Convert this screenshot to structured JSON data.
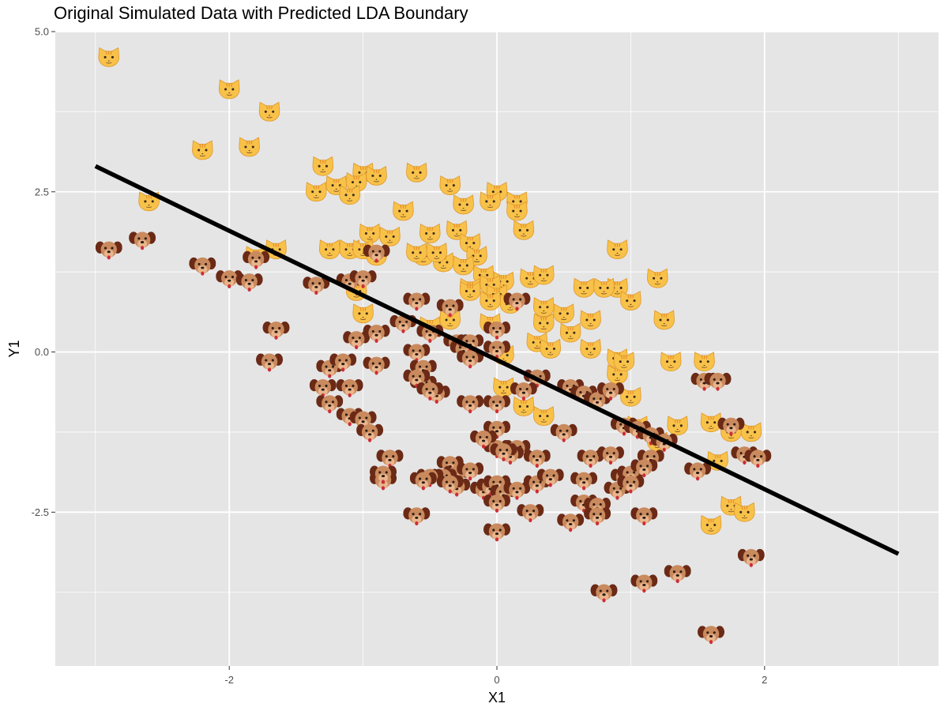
{
  "chart_data": {
    "type": "scatter",
    "title": "Original Simulated Data with Predicted LDA Boundary",
    "xlabel": "X1",
    "ylabel": "Y1",
    "xlim": [
      -3.3,
      3.3
    ],
    "ylim": [
      -4.9,
      5.0
    ],
    "x_ticks": [
      -2,
      0,
      2
    ],
    "x_tick_labels": [
      "-2",
      "0",
      "2"
    ],
    "y_ticks": [
      5.0,
      2.5,
      0.0,
      -2.5
    ],
    "y_tick_labels": [
      "5.0",
      "2.5",
      "0.0",
      "-2.5"
    ],
    "grid": true,
    "colors": {
      "panel_background": "#e5e5e5",
      "grid": "#ffffff",
      "boundary_line": "#000000",
      "cat_fill": "#f8c24a",
      "cat_stripe": "#e58f2a",
      "dog_ear": "#6b2a16",
      "dog_face": "#c98a5e",
      "dog_muzzle": "#e9b58d",
      "dog_tongue": "#cc2e36"
    },
    "boundary_line": {
      "x": [
        -3.0,
        3.0
      ],
      "y": [
        2.9,
        -3.15
      ]
    },
    "series": [
      {
        "marker": "cat-icon",
        "points": [
          [
            -2.9,
            4.6
          ],
          [
            -2.0,
            4.1
          ],
          [
            -1.7,
            3.75
          ],
          [
            -1.85,
            3.2
          ],
          [
            -2.2,
            3.15
          ],
          [
            -2.6,
            2.35
          ],
          [
            -1.65,
            1.6
          ],
          [
            -1.3,
            2.9
          ],
          [
            -1.2,
            2.6
          ],
          [
            -1.35,
            2.5
          ],
          [
            -1.0,
            2.8
          ],
          [
            -0.9,
            2.75
          ],
          [
            -1.05,
            2.65
          ],
          [
            -1.1,
            2.45
          ],
          [
            -0.6,
            2.8
          ],
          [
            -0.35,
            2.6
          ],
          [
            -0.7,
            2.2
          ],
          [
            -0.8,
            1.8
          ],
          [
            -0.95,
            1.85
          ],
          [
            -0.5,
            1.85
          ],
          [
            -0.25,
            2.3
          ],
          [
            -0.3,
            1.9
          ],
          [
            -0.2,
            1.7
          ],
          [
            -0.15,
            1.5
          ],
          [
            -0.4,
            1.4
          ],
          [
            -0.55,
            1.5
          ],
          [
            -0.45,
            1.55
          ],
          [
            -0.25,
            1.35
          ],
          [
            -0.1,
            1.2
          ],
          [
            0.05,
            1.1
          ],
          [
            -0.05,
            1.05
          ],
          [
            -0.2,
            1.0
          ],
          [
            0.0,
            2.5
          ],
          [
            0.15,
            2.35
          ],
          [
            -0.05,
            2.35
          ],
          [
            0.15,
            2.2
          ],
          [
            0.2,
            1.9
          ],
          [
            -1.25,
            1.6
          ],
          [
            -1.1,
            1.6
          ],
          [
            -1.0,
            1.6
          ],
          [
            -0.9,
            1.5
          ],
          [
            -0.6,
            1.55
          ],
          [
            0.0,
            0.9
          ],
          [
            0.1,
            0.75
          ],
          [
            -0.05,
            0.8
          ],
          [
            0.35,
            0.7
          ],
          [
            0.5,
            0.6
          ],
          [
            0.35,
            0.45
          ],
          [
            0.65,
            1.0
          ],
          [
            0.9,
            1.0
          ],
          [
            0.8,
            1.0
          ],
          [
            1.2,
            1.15
          ],
          [
            1.0,
            0.8
          ],
          [
            1.25,
            0.5
          ],
          [
            0.7,
            0.5
          ],
          [
            0.55,
            0.3
          ],
          [
            0.7,
            0.05
          ],
          [
            0.9,
            -0.1
          ],
          [
            0.9,
            -0.35
          ],
          [
            0.95,
            -0.15
          ],
          [
            1.3,
            -0.15
          ],
          [
            1.55,
            -0.15
          ],
          [
            0.05,
            -0.05
          ],
          [
            0.3,
            0.15
          ],
          [
            0.4,
            0.05
          ],
          [
            -1.0,
            0.6
          ],
          [
            -1.05,
            0.95
          ],
          [
            -0.5,
            0.4
          ],
          [
            -0.35,
            0.5
          ],
          [
            1.0,
            -0.7
          ],
          [
            1.35,
            -1.15
          ],
          [
            1.6,
            -1.1
          ],
          [
            1.75,
            -1.25
          ],
          [
            1.9,
            -1.25
          ],
          [
            1.05,
            -1.15
          ],
          [
            1.2,
            -1.4
          ],
          [
            1.65,
            -1.7
          ],
          [
            1.75,
            -2.4
          ],
          [
            1.85,
            -2.5
          ],
          [
            1.6,
            -2.7
          ],
          [
            0.9,
            1.6
          ],
          [
            0.25,
            1.15
          ],
          [
            0.35,
            1.2
          ],
          [
            -1.8,
            1.5
          ],
          [
            -0.2,
            0.95
          ],
          [
            0.05,
            -0.55
          ],
          [
            0.2,
            -0.85
          ],
          [
            0.35,
            -1.0
          ],
          [
            -0.05,
            0.45
          ]
        ]
      },
      {
        "marker": "dog-icon",
        "points": [
          [
            -2.9,
            1.6
          ],
          [
            -2.65,
            1.75
          ],
          [
            -2.2,
            1.35
          ],
          [
            -2.0,
            1.15
          ],
          [
            -1.85,
            1.1
          ],
          [
            -1.8,
            1.45
          ],
          [
            -1.65,
            0.35
          ],
          [
            -1.7,
            -0.15
          ],
          [
            -1.35,
            1.05
          ],
          [
            -1.1,
            1.1
          ],
          [
            -1.0,
            1.15
          ],
          [
            -0.9,
            1.55
          ],
          [
            -1.25,
            -0.25
          ],
          [
            -1.15,
            -0.15
          ],
          [
            -1.3,
            -0.55
          ],
          [
            -1.25,
            -0.8
          ],
          [
            -1.1,
            -0.55
          ],
          [
            -1.05,
            0.2
          ],
          [
            -0.9,
            0.3
          ],
          [
            -0.9,
            -0.2
          ],
          [
            -1.1,
            -1.0
          ],
          [
            -1.0,
            -1.05
          ],
          [
            -0.95,
            -1.25
          ],
          [
            -0.8,
            -1.65
          ],
          [
            -0.85,
            -2.0
          ],
          [
            -0.6,
            0.8
          ],
          [
            -0.6,
            0.0
          ],
          [
            -0.55,
            -0.25
          ],
          [
            -0.55,
            -0.5
          ],
          [
            -0.6,
            -0.4
          ],
          [
            -0.45,
            -0.65
          ],
          [
            -0.7,
            0.45
          ],
          [
            -0.5,
            0.3
          ],
          [
            -0.35,
            0.7
          ],
          [
            -0.3,
            0.15
          ],
          [
            -0.25,
            0.05
          ],
          [
            -0.2,
            0.15
          ],
          [
            -0.2,
            -0.1
          ],
          [
            0.0,
            0.35
          ],
          [
            0.0,
            0.05
          ],
          [
            0.15,
            0.8
          ],
          [
            0.3,
            -0.4
          ],
          [
            0.55,
            -0.55
          ],
          [
            0.65,
            -0.65
          ],
          [
            0.75,
            -0.75
          ],
          [
            0.85,
            -0.6
          ],
          [
            -0.2,
            -0.8
          ],
          [
            0.0,
            -0.8
          ],
          [
            0.2,
            -0.6
          ],
          [
            0.0,
            -1.2
          ],
          [
            0.15,
            -1.5
          ],
          [
            0.0,
            -1.5
          ],
          [
            0.1,
            -1.6
          ],
          [
            0.3,
            -1.65
          ],
          [
            0.5,
            -1.25
          ],
          [
            -0.1,
            -1.35
          ],
          [
            0.05,
            -1.55
          ],
          [
            0.7,
            -1.65
          ],
          [
            0.85,
            -1.6
          ],
          [
            0.95,
            -1.15
          ],
          [
            1.05,
            -1.2
          ],
          [
            1.15,
            -1.3
          ],
          [
            1.25,
            -1.4
          ],
          [
            0.95,
            -1.95
          ],
          [
            1.0,
            -1.9
          ],
          [
            1.15,
            -1.65
          ],
          [
            1.1,
            -1.8
          ],
          [
            1.5,
            -1.85
          ],
          [
            1.55,
            -0.45
          ],
          [
            1.65,
            -0.45
          ],
          [
            1.75,
            -1.15
          ],
          [
            1.85,
            -1.6
          ],
          [
            1.95,
            -1.65
          ],
          [
            1.9,
            -3.2
          ],
          [
            -0.35,
            -1.75
          ],
          [
            -0.3,
            -1.9
          ],
          [
            -0.4,
            -1.95
          ],
          [
            -0.3,
            -2.1
          ],
          [
            -0.1,
            -2.15
          ],
          [
            -0.05,
            -2.1
          ],
          [
            0.0,
            -2.05
          ],
          [
            0.05,
            -2.2
          ],
          [
            0.15,
            -2.15
          ],
          [
            0.3,
            -2.05
          ],
          [
            0.4,
            -1.95
          ],
          [
            -0.5,
            -1.95
          ],
          [
            -0.35,
            -2.05
          ],
          [
            -0.2,
            -1.85
          ],
          [
            0.0,
            -2.35
          ],
          [
            0.25,
            -2.5
          ],
          [
            -0.6,
            -2.55
          ],
          [
            -0.55,
            -2.0
          ],
          [
            0.0,
            -2.8
          ],
          [
            0.55,
            -2.65
          ],
          [
            0.65,
            -2.35
          ],
          [
            0.75,
            -2.4
          ],
          [
            0.9,
            -2.15
          ],
          [
            1.0,
            -2.05
          ],
          [
            0.75,
            -2.55
          ],
          [
            1.1,
            -2.55
          ],
          [
            0.8,
            -3.75
          ],
          [
            1.1,
            -3.6
          ],
          [
            1.35,
            -3.45
          ],
          [
            1.6,
            -4.4
          ],
          [
            -0.5,
            -0.6
          ],
          [
            -0.85,
            -1.9
          ],
          [
            0.65,
            -2.0
          ]
        ]
      }
    ]
  }
}
